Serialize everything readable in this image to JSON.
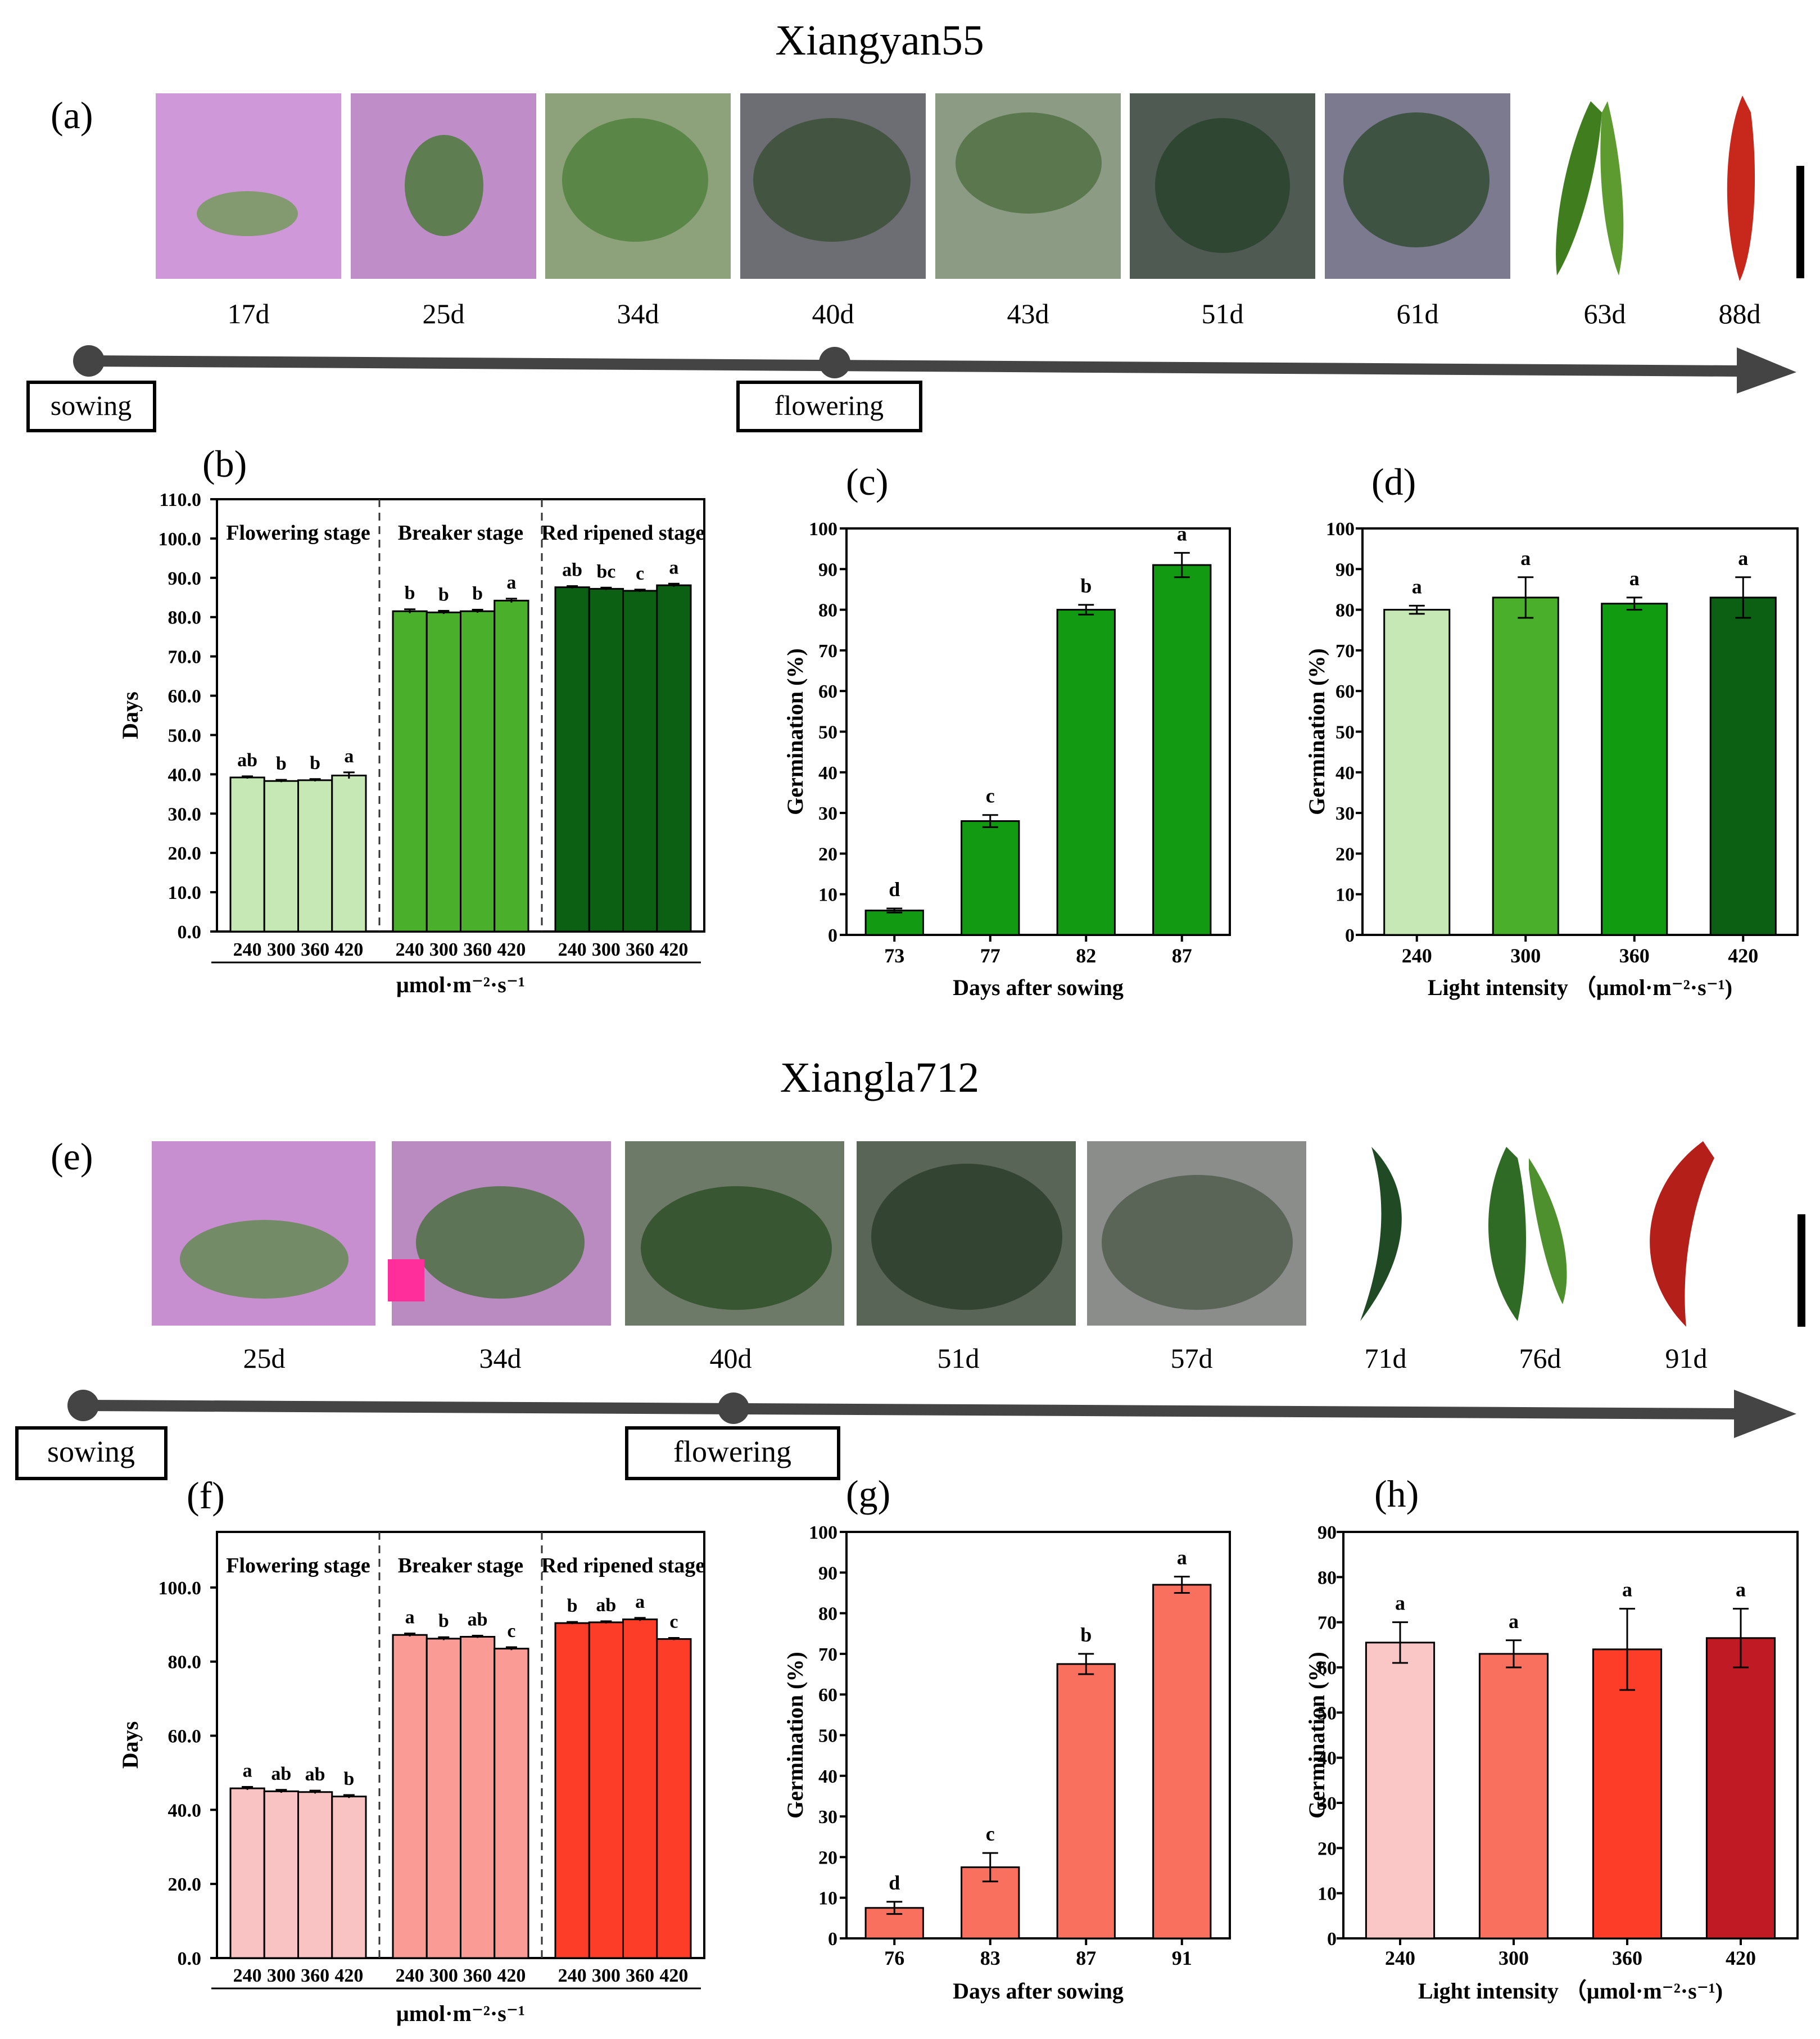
{
  "top": {
    "title": "Xiangyan55",
    "panel_a": "(a)",
    "photo_days": [
      "17d",
      "25d",
      "34d",
      "40d",
      "43d",
      "51d",
      "61d"
    ],
    "fruit_days": [
      "63d",
      "88d"
    ],
    "timeline": {
      "start_label": "sowing",
      "mid_label": "flowering"
    },
    "colors": {
      "photo_bg": "#c98fd4",
      "pepper_green": "#3f7d1f",
      "pepper_red": "#c8281c"
    }
  },
  "bottom": {
    "title": "Xiangla712",
    "panel_e": "(e)",
    "photo_days": [
      "25d",
      "34d",
      "40d",
      "51d",
      "57d"
    ],
    "fruit_days": [
      "71d",
      "76d",
      "91d"
    ],
    "timeline": {
      "start_label": "sowing",
      "mid_label": "flowering"
    }
  },
  "chart_data": [
    {
      "id": "b",
      "panel": "(b)",
      "type": "bar",
      "ylabel": "Days",
      "xlabel": "μmol·m⁻²·s⁻¹",
      "ylim": [
        0,
        110
      ],
      "yticks": [
        "0.0",
        "10.0",
        "20.0",
        "30.0",
        "40.0",
        "50.0",
        "60.0",
        "70.0",
        "80.0",
        "90.0",
        "100.0",
        "110.0"
      ],
      "categories": [
        "240",
        "300",
        "360",
        "420"
      ],
      "groups": [
        {
          "name": "Flowering stage",
          "color": "#c5e8b4",
          "values": [
            39.2,
            38.3,
            38.5,
            39.7
          ],
          "errors": [
            0.3,
            0.3,
            0.3,
            0.8
          ],
          "letters": [
            "ab",
            "b",
            "b",
            "a"
          ]
        },
        {
          "name": "Breaker stage",
          "color": "#4aaf2a",
          "values": [
            81.5,
            81.2,
            81.5,
            84.2
          ],
          "errors": [
            0.5,
            0.4,
            0.4,
            0.5
          ],
          "letters": [
            "b",
            "b",
            "b",
            "a"
          ]
        },
        {
          "name": "Red ripened stage",
          "color": "#0b6014",
          "values": [
            87.6,
            87.2,
            86.7,
            88.1
          ],
          "errors": [
            0.3,
            0.3,
            0.3,
            0.4
          ],
          "letters": [
            "ab",
            "bc",
            "c",
            "a"
          ]
        }
      ]
    },
    {
      "id": "c",
      "panel": "(c)",
      "type": "bar",
      "ylabel": "Germination (%)",
      "xlabel": "Days after sowing",
      "ylim": [
        0,
        100
      ],
      "yticks": [
        "0",
        "10",
        "20",
        "30",
        "40",
        "50",
        "60",
        "70",
        "80",
        "90",
        "100"
      ],
      "categories": [
        "73",
        "77",
        "82",
        "87"
      ],
      "values": [
        6,
        28,
        80,
        91
      ],
      "errors": [
        0.5,
        1.5,
        1.2,
        3
      ],
      "letters": [
        "d",
        "c",
        "b",
        "a"
      ],
      "colors": [
        "#129a12",
        "#129a12",
        "#129a12",
        "#129a12"
      ]
    },
    {
      "id": "d",
      "panel": "(d)",
      "type": "bar",
      "ylabel": "Germination (%)",
      "xlabel": "Light intensity  （μmol·m⁻²·s⁻¹)",
      "ylim": [
        0,
        100
      ],
      "yticks": [
        "0",
        "10",
        "20",
        "30",
        "40",
        "50",
        "60",
        "70",
        "80",
        "90",
        "100"
      ],
      "categories": [
        "240",
        "300",
        "360",
        "420"
      ],
      "values": [
        80,
        83,
        81.5,
        83
      ],
      "errors": [
        1,
        5,
        1.5,
        5
      ],
      "letters": [
        "a",
        "a",
        "a",
        "a"
      ],
      "colors": [
        "#c5e8b4",
        "#4aaf2a",
        "#119b11",
        "#0b6014"
      ]
    },
    {
      "id": "f",
      "panel": "(f)",
      "type": "bar",
      "ylabel": "Days",
      "xlabel": "μmol·m⁻²·s⁻¹",
      "ylim": [
        0,
        115
      ],
      "yticks": [
        "0.0",
        "20.0",
        "40.0",
        "60.0",
        "80.0",
        "100.0"
      ],
      "categories": [
        "240",
        "300",
        "360",
        "420"
      ],
      "groups": [
        {
          "name": "Flowering stage",
          "color": "#f9c3c3",
          "values": [
            45.8,
            45.0,
            44.8,
            43.6
          ],
          "errors": [
            0.4,
            0.4,
            0.4,
            0.4
          ],
          "letters": [
            "a",
            "ab",
            "ab",
            "b"
          ]
        },
        {
          "name": "Breaker stage",
          "color": "#fb9b96",
          "values": [
            87.2,
            86.2,
            86.7,
            83.5
          ],
          "errors": [
            0.4,
            0.4,
            0.3,
            0.4
          ],
          "letters": [
            "a",
            "b",
            "ab",
            "c"
          ]
        },
        {
          "name": "Red ripened stage",
          "color": "#fe3d28",
          "values": [
            90.4,
            90.6,
            91.4,
            86.1
          ],
          "errors": [
            0.3,
            0.3,
            0.4,
            0.3
          ],
          "letters": [
            "b",
            "ab",
            "a",
            "c"
          ]
        }
      ]
    },
    {
      "id": "g",
      "panel": "(g)",
      "type": "bar",
      "ylabel": "Germination (%)",
      "xlabel": "Days after sowing",
      "ylim": [
        0,
        100
      ],
      "yticks": [
        "0",
        "10",
        "20",
        "30",
        "40",
        "50",
        "60",
        "70",
        "80",
        "90",
        "100"
      ],
      "categories": [
        "76",
        "83",
        "87",
        "91"
      ],
      "values": [
        7.5,
        17.5,
        67.5,
        87
      ],
      "errors": [
        1.5,
        3.5,
        2.5,
        2
      ],
      "letters": [
        "d",
        "c",
        "b",
        "a"
      ],
      "colors": [
        "#fa705f",
        "#fa705f",
        "#fa705f",
        "#fa705f"
      ]
    },
    {
      "id": "h",
      "panel": "(h)",
      "type": "bar",
      "ylabel": "Germination (%)",
      "xlabel": "Light intensity  （μmol·m⁻²·s⁻¹)",
      "ylim": [
        0,
        90
      ],
      "yticks": [
        "0",
        "10",
        "20",
        "30",
        "40",
        "50",
        "60",
        "70",
        "80",
        "90"
      ],
      "categories": [
        "240",
        "300",
        "360",
        "420"
      ],
      "values": [
        65.5,
        63,
        64,
        66.5
      ],
      "errors": [
        4.5,
        3,
        9,
        6.5
      ],
      "letters": [
        "a",
        "a",
        "a",
        "a"
      ],
      "colors": [
        "#fac6c6",
        "#f9705f",
        "#fe3d28",
        "#c01b25"
      ]
    }
  ]
}
